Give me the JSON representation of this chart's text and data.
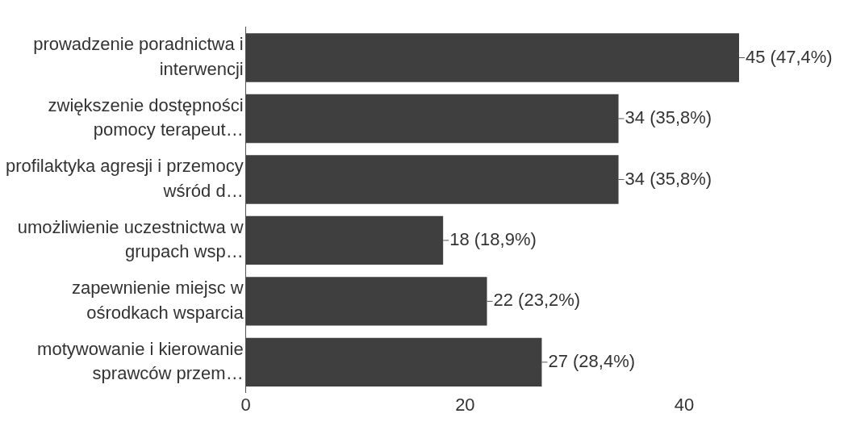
{
  "chart_data": {
    "type": "bar",
    "orientation": "horizontal",
    "categories": [
      "prowadzenie poradnictwa i interwencji",
      "zwiększenie dostępności pomocy terapeut…",
      "profilaktyka agresji i przemocy wśród d…",
      "umożliwienie uczestnictwa w grupach wsp…",
      "zapewnienie miejsc w ośrodkach wsparcia",
      "motywowanie i kierowanie sprawców przem…"
    ],
    "values": [
      45,
      34,
      34,
      18,
      22,
      27
    ],
    "value_labels": [
      "45 (47,4%)",
      "34 (35,8%)",
      "34 (35,8%)",
      "18 (18,9%)",
      "22 (23,2%)",
      "27 (28,4%)"
    ],
    "color": "#3f3f3f",
    "xlim": [
      0,
      45
    ],
    "xticks": [
      0,
      20,
      40
    ],
    "grid": false,
    "legend": false
  }
}
